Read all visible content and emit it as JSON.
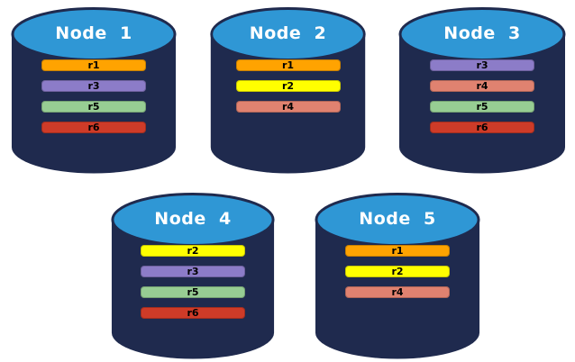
{
  "diagram": {
    "description": "Five database node cylinders showing replica placement",
    "background": "#FFFFFF"
  },
  "colors": {
    "cylinder_body": "#1F2A4E",
    "cylinder_top": "#2F97D5",
    "node_label_text": "#FFFFFF",
    "replica_label_text": "#000000",
    "replicas": {
      "r1": "#FFA301",
      "r2": "#FFFF00",
      "r3": "#8C7CC8",
      "r4": "#E08270",
      "r5": "#97CD93",
      "r6": "#CE3B28"
    }
  },
  "nodes": [
    {
      "label": "Node  1",
      "replicas": [
        "r1",
        "r3",
        "r5",
        "r6"
      ]
    },
    {
      "label": "Node  2",
      "replicas": [
        "r1",
        "r2",
        "r4"
      ]
    },
    {
      "label": "Node  3",
      "replicas": [
        "r3",
        "r4",
        "r5",
        "r6"
      ]
    },
    {
      "label": "Node  4",
      "replicas": [
        "r2",
        "r3",
        "r5",
        "r6"
      ]
    },
    {
      "label": "Node  5",
      "replicas": [
        "r1",
        "r2",
        "r4"
      ]
    }
  ]
}
